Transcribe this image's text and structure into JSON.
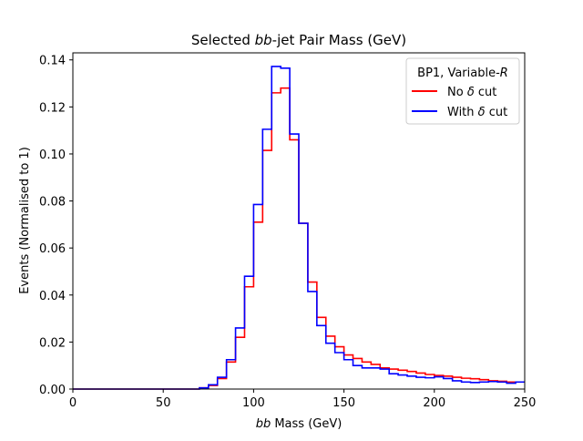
{
  "chart_data": {
    "type": "line",
    "title": {
      "prefix": "Selected ",
      "italic": "bb",
      "suffix": "-jet Pair Mass (GeV)"
    },
    "xlabel": {
      "italic": "bb",
      "suffix": " Mass (GeV)"
    },
    "ylabel": "Events (Normalised to 1)",
    "xlim": [
      0,
      250
    ],
    "ylim": [
      0,
      0.143
    ],
    "xticks": [
      0,
      50,
      100,
      150,
      200,
      250
    ],
    "xtick_labels": [
      "0",
      "50",
      "100",
      "150",
      "200",
      "250"
    ],
    "yticks": [
      0.0,
      0.02,
      0.04,
      0.06,
      0.08,
      0.1,
      0.12,
      0.14
    ],
    "ytick_labels": [
      "0.00",
      "0.02",
      "0.04",
      "0.06",
      "0.08",
      "0.10",
      "0.12",
      "0.14"
    ],
    "grid": false,
    "legend": {
      "location": "top-right",
      "title_prefix": "BP1, Variable-",
      "title_italic": "R"
    },
    "bin_edges": [
      0,
      5,
      10,
      15,
      20,
      25,
      30,
      35,
      40,
      45,
      50,
      55,
      60,
      65,
      70,
      75,
      80,
      85,
      90,
      95,
      100,
      105,
      110,
      115,
      120,
      125,
      130,
      135,
      140,
      145,
      150,
      155,
      160,
      165,
      170,
      175,
      180,
      185,
      190,
      195,
      200,
      205,
      210,
      215,
      220,
      225,
      230,
      235,
      240,
      245,
      250
    ],
    "series": [
      {
        "name": "No δ cut",
        "label_prefix": "No ",
        "label_italic": "δ",
        "label_suffix": " cut",
        "color": "#ff0000",
        "style": "step",
        "values": [
          0,
          0,
          0,
          0,
          0,
          0,
          0,
          0,
          0,
          0,
          0,
          0,
          0,
          0,
          0.0005,
          0.0015,
          0.0045,
          0.0115,
          0.022,
          0.0435,
          0.071,
          0.1015,
          0.126,
          0.128,
          0.106,
          0.0705,
          0.0455,
          0.0305,
          0.0225,
          0.018,
          0.0145,
          0.013,
          0.0115,
          0.0105,
          0.009,
          0.0085,
          0.008,
          0.0075,
          0.0068,
          0.0062,
          0.0058,
          0.0055,
          0.005,
          0.0046,
          0.0044,
          0.004,
          0.0035,
          0.0033,
          0.003,
          0.003
        ]
      },
      {
        "name": "With δ cut",
        "label_prefix": "With ",
        "label_italic": "δ",
        "label_suffix": " cut",
        "color": "#0000ff",
        "style": "step",
        "values": [
          0,
          0,
          0,
          0,
          0,
          0,
          0,
          0,
          0,
          0,
          0,
          0,
          0,
          0,
          0.0005,
          0.0018,
          0.005,
          0.0125,
          0.026,
          0.048,
          0.0785,
          0.1105,
          0.1372,
          0.1365,
          0.1085,
          0.0705,
          0.0415,
          0.027,
          0.0195,
          0.0155,
          0.0125,
          0.01,
          0.009,
          0.009,
          0.0085,
          0.0065,
          0.006,
          0.0055,
          0.005,
          0.0048,
          0.0052,
          0.0045,
          0.0035,
          0.003,
          0.0028,
          0.003,
          0.0032,
          0.003,
          0.0025,
          0.003
        ]
      }
    ]
  }
}
